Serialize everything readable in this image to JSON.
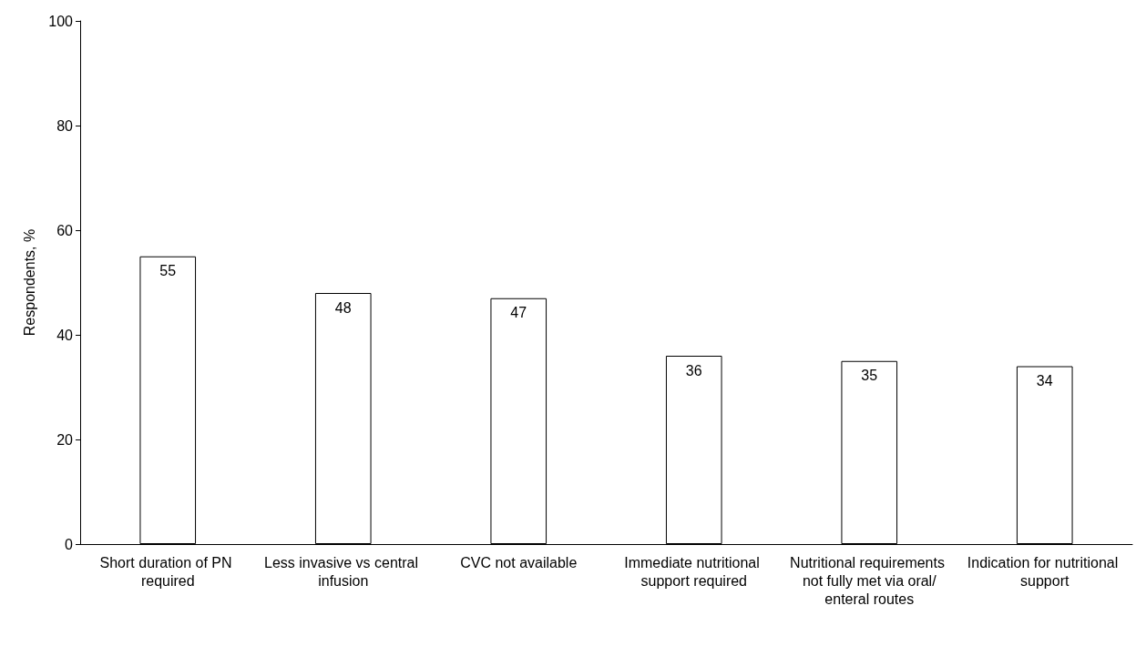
{
  "chart_data": {
    "type": "bar",
    "ylabel": "Respondents, %",
    "categories": [
      "Short duration of PN required",
      "Less invasive vs central infusion",
      "CVC not available",
      "Immediate nutritional support required",
      "Nutritional requirements not fully met via oral/enteral routes",
      "Indication for nutritional support"
    ],
    "values": [
      55,
      48,
      47,
      36,
      35,
      34
    ],
    "color": "#ffffff",
    "ylim": [
      0,
      100
    ],
    "yticks": [
      0,
      20,
      40,
      60,
      80,
      100
    ],
    "grid": false,
    "data_labels": true
  }
}
